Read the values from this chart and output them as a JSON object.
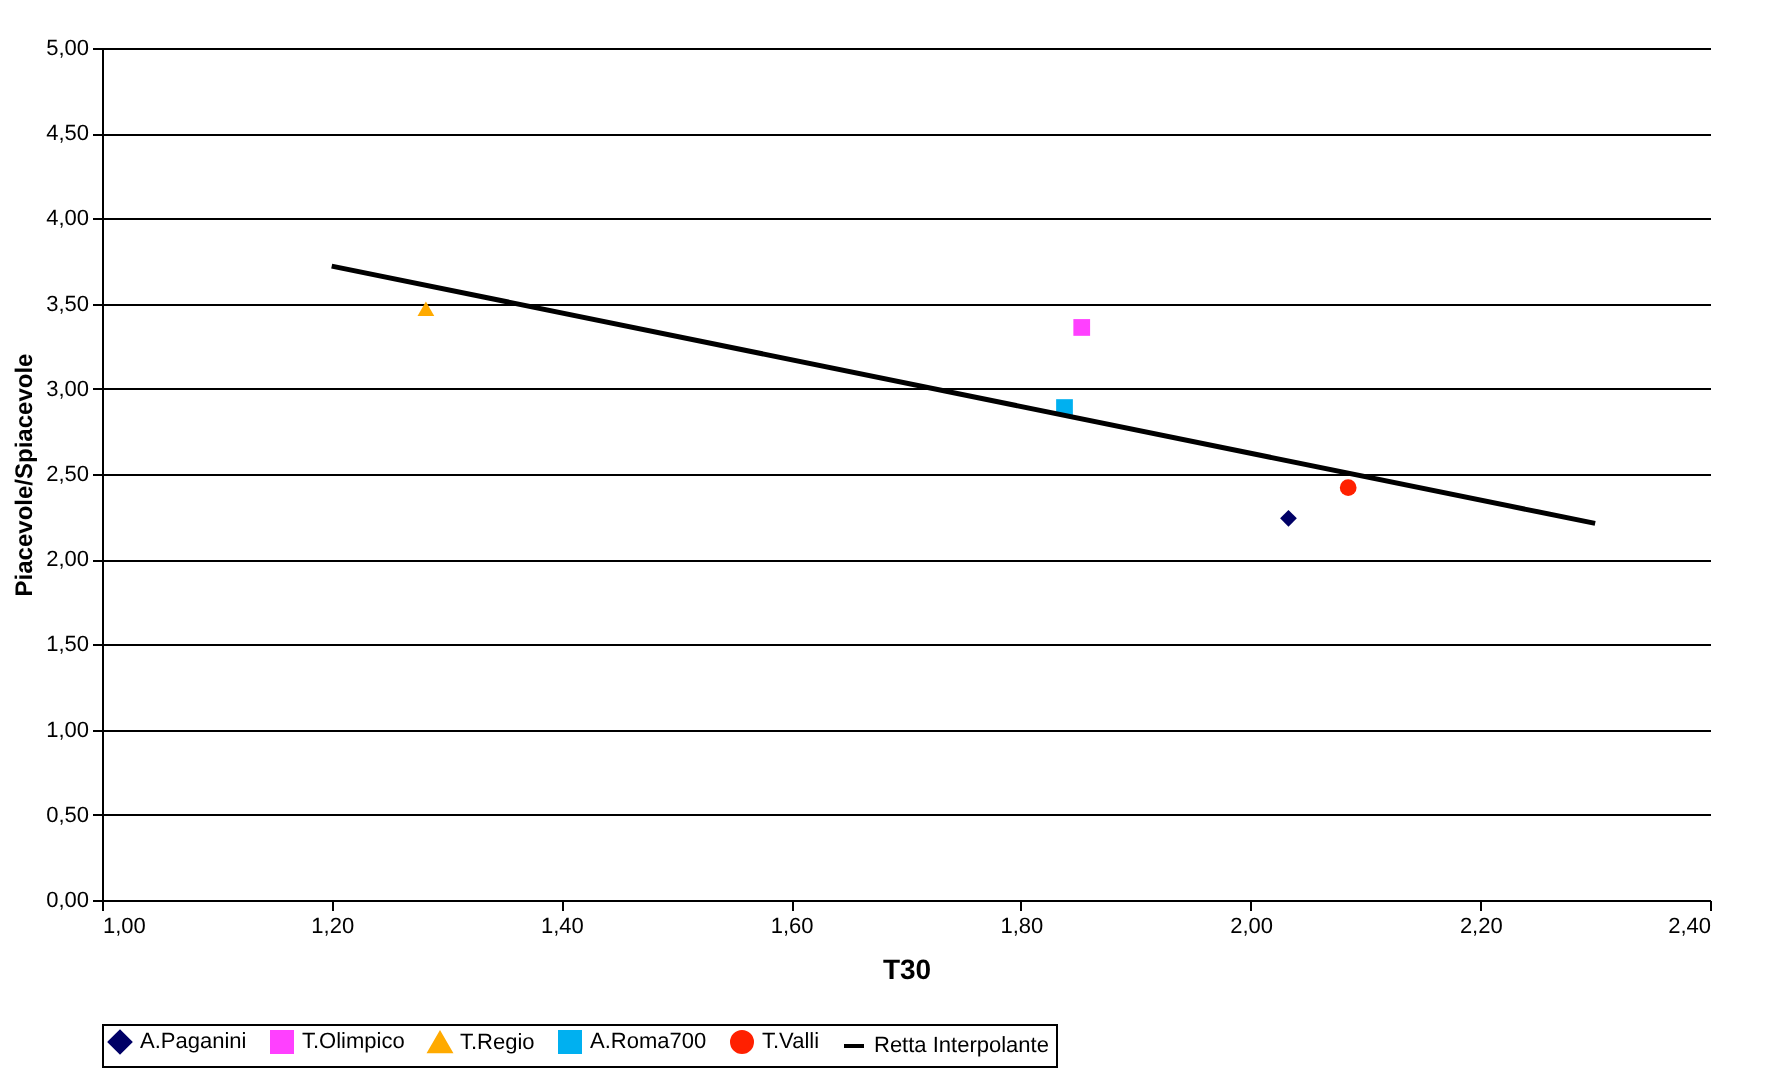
{
  "chart_data": {
    "type": "scatter",
    "xlabel": "T30",
    "ylabel": "Piacevole/Spiacevole",
    "xlim": [
      1.0,
      2.4
    ],
    "ylim": [
      0,
      5
    ],
    "xticks": [
      {
        "value": 1.0,
        "label": "1,00"
      },
      {
        "value": 1.2,
        "label": "1,20"
      },
      {
        "value": 1.4,
        "label": "1,40"
      },
      {
        "value": 1.6,
        "label": "1,60"
      },
      {
        "value": 1.8,
        "label": "1,80"
      },
      {
        "value": 2.0,
        "label": "2,00"
      },
      {
        "value": 2.2,
        "label": "2,20"
      },
      {
        "value": 2.4,
        "label": "2,40"
      }
    ],
    "yticks": [
      {
        "value": 0,
        "label": "0,00"
      },
      {
        "value": 0.5,
        "label": "0,50"
      },
      {
        "value": 1.0,
        "label": "1,00"
      },
      {
        "value": 1.5,
        "label": "1,50"
      },
      {
        "value": 2.0,
        "label": "2,00"
      },
      {
        "value": 2.5,
        "label": "2,50"
      },
      {
        "value": 3.0,
        "label": "3,00"
      },
      {
        "value": 3.5,
        "label": "3,50"
      },
      {
        "value": 4.0,
        "label": "4,00"
      },
      {
        "value": 4.5,
        "label": "4,50"
      },
      {
        "value": 5.0,
        "label": "5,00"
      }
    ],
    "grid": "y",
    "legend": "bottom",
    "series": [
      {
        "name": "A.Paganini",
        "color": "#000066",
        "marker": "diamond",
        "x": [
          2.033
        ],
        "values": [
          2.24
        ]
      },
      {
        "name": "T.Olimpico",
        "color": "#ff40ff",
        "marker": "square",
        "x": [
          1.853
        ],
        "values": [
          3.36
        ]
      },
      {
        "name": "T.Regio",
        "color": "#ffaa00",
        "marker": "triangle",
        "x": [
          1.282
        ],
        "values": [
          3.47
        ]
      },
      {
        "name": "A.Roma700",
        "color": "#00b0f0",
        "marker": "square",
        "x": [
          1.838
        ],
        "values": [
          2.89
        ]
      },
      {
        "name": "T.Valli",
        "color": "#ff2000",
        "marker": "circle",
        "x": [
          2.085
        ],
        "values": [
          2.42
        ]
      },
      {
        "name": "Retta Interpolante",
        "color": "#000000",
        "type": "line",
        "marker": "none",
        "x": [
          1.2,
          2.3
        ],
        "values": [
          3.72,
          2.21
        ]
      }
    ]
  }
}
